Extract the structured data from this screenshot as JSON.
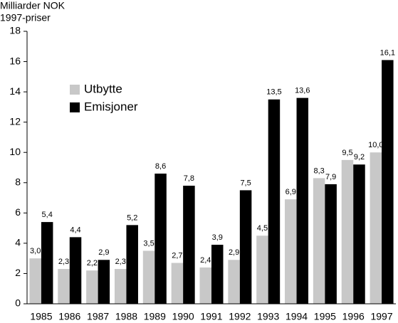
{
  "chart_data": {
    "type": "bar",
    "ylabel_lines": [
      "Milliarder NOK",
      "1997-priser"
    ],
    "categories": [
      "1985",
      "1986",
      "1987",
      "1988",
      "1989",
      "1990",
      "1991",
      "1992",
      "1993",
      "1994",
      "1995",
      "1996",
      "1997"
    ],
    "series": [
      {
        "name": "Utbytte",
        "color": "#c8c8c8",
        "values": [
          3.0,
          2.3,
          2.2,
          2.3,
          3.5,
          2.7,
          2.4,
          2.9,
          4.5,
          6.9,
          8.3,
          9.5,
          10.0
        ],
        "value_labels": [
          "3,0",
          "2,3",
          "2,2",
          "2,3",
          "3,5",
          "2,7",
          "2,4",
          "2,9",
          "4,5",
          "6,9",
          "8,3",
          "9,5",
          "10,0"
        ]
      },
      {
        "name": "Emisjoner",
        "color": "#000000",
        "values": [
          5.4,
          4.4,
          2.9,
          5.2,
          8.6,
          7.8,
          3.9,
          7.5,
          13.5,
          13.6,
          7.9,
          9.2,
          16.1
        ],
        "value_labels": [
          "5,4",
          "4,4",
          "2,9",
          "5,2",
          "8,6",
          "7,8",
          "3,9",
          "7,5",
          "13,5",
          "13,6",
          "7,9",
          "9,2",
          "16,1"
        ]
      }
    ],
    "ylim": [
      0,
      18
    ],
    "yticks": [
      0,
      2,
      4,
      6,
      8,
      10,
      12,
      14,
      16,
      18
    ],
    "grid": false,
    "legend_position": "upper left"
  }
}
